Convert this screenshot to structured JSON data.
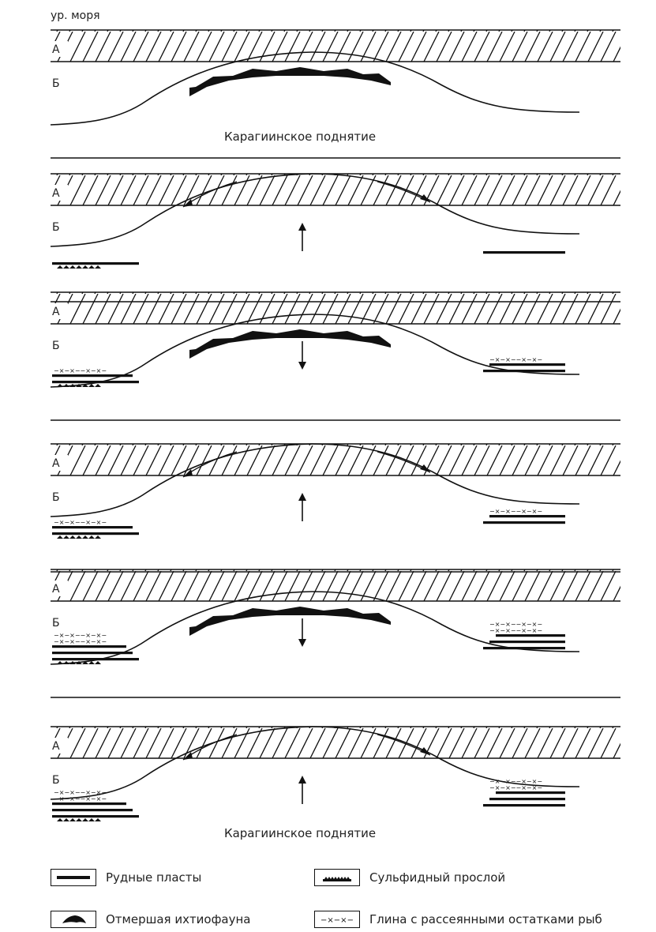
{
  "sea_level_label": "ур. моря",
  "layer_a_label": "А",
  "layer_b_label": "Б",
  "uplift_caption": "Карагиинское поднятие",
  "panels": [
    {
      "stage": 1,
      "arrow": "none",
      "outflow": false,
      "ore_layers": 0,
      "clay_rows": 0,
      "sulfide": false,
      "dead_fauna": true,
      "caption": true
    },
    {
      "stage": 2,
      "arrow": "up",
      "outflow": true,
      "ore_layers": 1,
      "clay_rows": 0,
      "sulfide": true,
      "dead_fauna": false,
      "caption": false
    },
    {
      "stage": 3,
      "arrow": "down",
      "outflow": false,
      "ore_layers": 2,
      "clay_rows": 1,
      "sulfide": true,
      "dead_fauna": true,
      "caption": false
    },
    {
      "stage": 4,
      "arrow": "up",
      "outflow": true,
      "ore_layers": 2,
      "clay_rows": 1,
      "sulfide": true,
      "dead_fauna": false,
      "caption": false
    },
    {
      "stage": 5,
      "arrow": "down",
      "outflow": false,
      "ore_layers": 3,
      "clay_rows": 2,
      "sulfide": true,
      "dead_fauna": true,
      "caption": false
    },
    {
      "stage": 6,
      "arrow": "up",
      "outflow": true,
      "ore_layers": 3,
      "clay_rows": 2,
      "sulfide": true,
      "dead_fauna": false,
      "caption": true
    }
  ],
  "legend": {
    "ore_beds": "Рудные пласты",
    "sulfide_layer": "Сульфидный прослой",
    "dead_fauna": "Отмершая ихтиофауна",
    "clay_fish": "Глина с рассеянными остатками рыб",
    "clay_symbol": "−×−×−"
  }
}
